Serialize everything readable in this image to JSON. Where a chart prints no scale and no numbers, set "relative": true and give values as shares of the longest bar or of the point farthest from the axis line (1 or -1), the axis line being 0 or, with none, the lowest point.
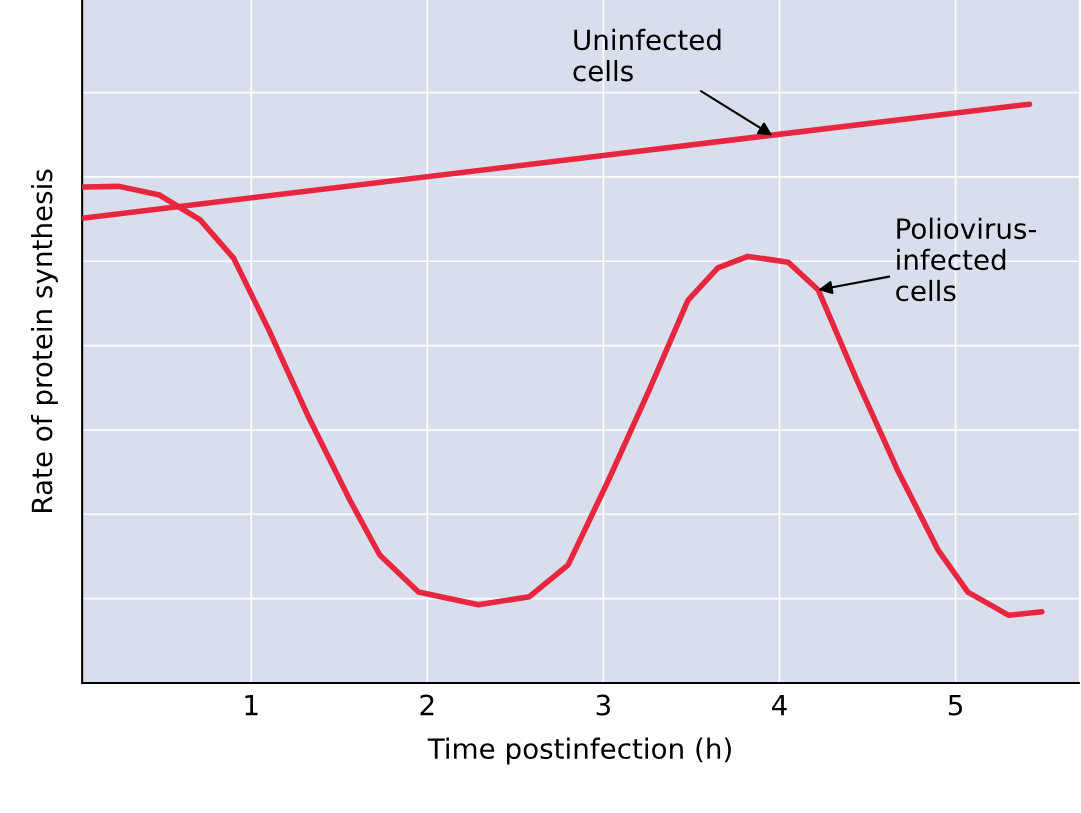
{
  "chart_data": {
    "type": "line",
    "relative": true,
    "xlabel": "Time postinfection (h)",
    "ylabel": "Rate of protein synthesis",
    "xlim": [
      0.04,
      5.7
    ],
    "xticks": [
      1,
      2,
      3,
      4,
      5
    ],
    "grid": true,
    "marker": "none",
    "line_style": "solid",
    "series": [
      {
        "color": "#e8263f",
        "x": [
          0.04,
          5.42
        ],
        "values": [
          0.803,
          1.0
        ]
      },
      {
        "color": "#e8263f",
        "x": [
          0.05,
          0.25,
          0.48,
          0.71,
          0.9,
          1.1,
          1.32,
          1.56,
          1.73,
          1.95,
          2.29,
          2.58,
          2.8,
          3.03,
          3.26,
          3.48,
          3.65,
          3.82,
          4.05,
          4.22,
          4.44,
          4.67,
          4.9,
          5.07,
          5.3,
          5.49
        ],
        "values": [
          0.857,
          0.858,
          0.843,
          0.8,
          0.734,
          0.61,
          0.463,
          0.316,
          0.221,
          0.157,
          0.135,
          0.149,
          0.204,
          0.351,
          0.506,
          0.661,
          0.717,
          0.737,
          0.727,
          0.679,
          0.523,
          0.368,
          0.23,
          0.157,
          0.117,
          0.123
        ]
      }
    ],
    "annotations": [
      {
        "text": "Uninfected\ncells",
        "x": 3.96,
        "y": 0.946
      },
      {
        "text": "Poliovirus-\ninfected\ncells",
        "x": 4.22,
        "y": 0.679
      }
    ]
  }
}
